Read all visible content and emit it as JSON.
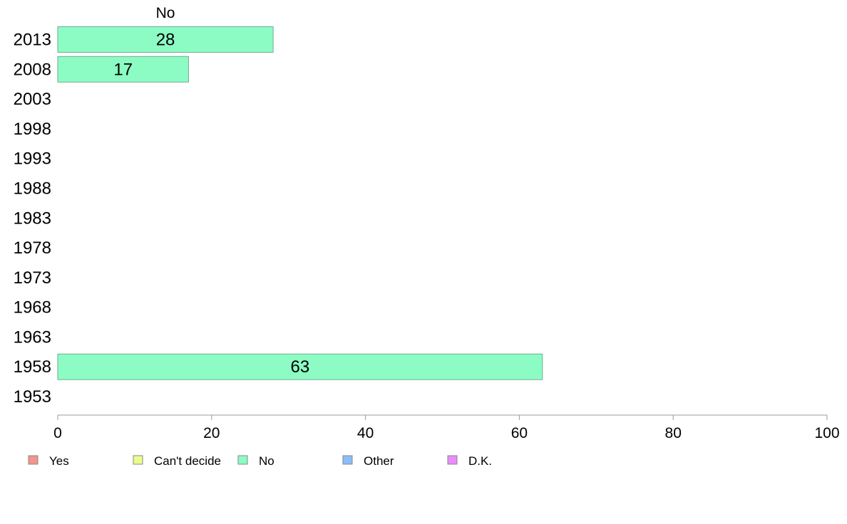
{
  "chart_data": {
    "type": "bar",
    "orientation": "horizontal",
    "stacked": true,
    "categories": [
      "2013",
      "2008",
      "2003",
      "1998",
      "1993",
      "1988",
      "1983",
      "1978",
      "1973",
      "1968",
      "1963",
      "1958",
      "1953"
    ],
    "series": [
      {
        "name": "Yes",
        "color": "#f4948c",
        "values": [
          null,
          null,
          null,
          null,
          null,
          null,
          null,
          null,
          null,
          null,
          null,
          null,
          null
        ]
      },
      {
        "name": "Can't decide",
        "color": "#ecfc8c",
        "values": [
          null,
          null,
          null,
          null,
          null,
          null,
          null,
          null,
          null,
          null,
          null,
          null,
          null
        ]
      },
      {
        "name": "No",
        "color": "#8cfcc4",
        "values": [
          28,
          17,
          null,
          null,
          null,
          null,
          null,
          null,
          null,
          null,
          null,
          63,
          null
        ]
      },
      {
        "name": "Other",
        "color": "#8cbcfc",
        "values": [
          null,
          null,
          null,
          null,
          null,
          null,
          null,
          null,
          null,
          null,
          null,
          null,
          null
        ]
      },
      {
        "name": "D.K.",
        "color": "#ec8cfc",
        "values": [
          null,
          null,
          null,
          null,
          null,
          null,
          null,
          null,
          null,
          null,
          null,
          null,
          null
        ]
      }
    ],
    "header_label": "No",
    "xlim": [
      0,
      100
    ],
    "xticks": [
      0,
      20,
      40,
      60,
      80,
      100
    ],
    "grid": false,
    "legend_position": "bottom",
    "bar_border_color": "#6fae8e",
    "axis_color": "#999999"
  }
}
